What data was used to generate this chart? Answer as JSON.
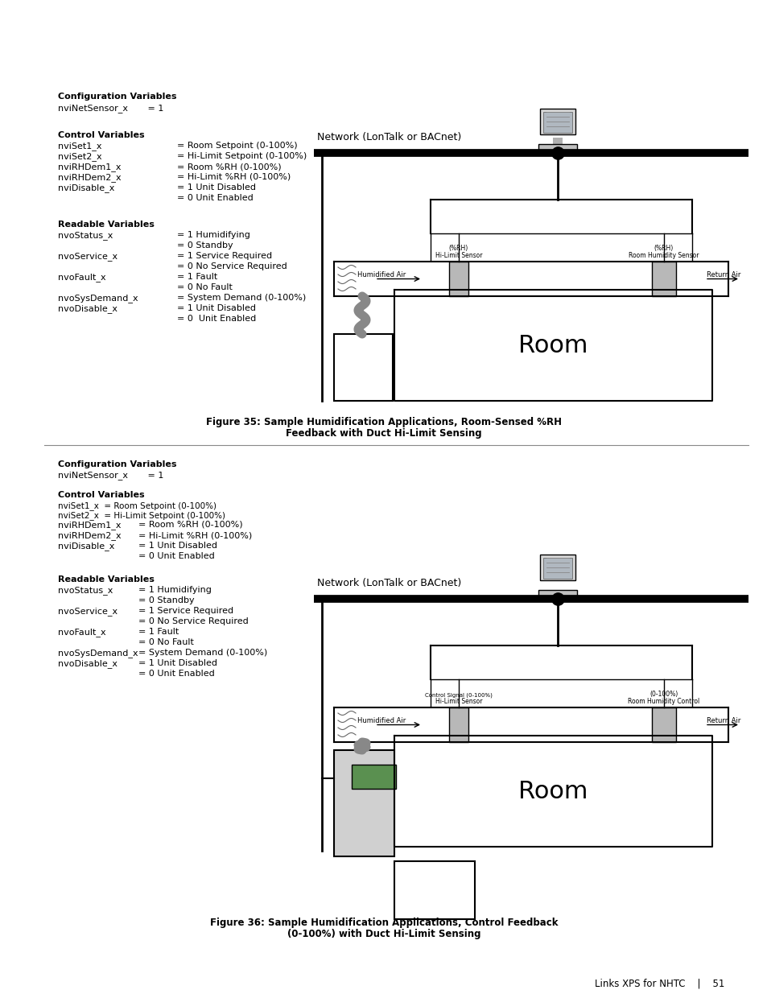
{
  "page_bg": "#ffffff",
  "section1": {
    "config_vars_title": "Configuration Variables",
    "config_vars": "nviNetSensor_x       = 1",
    "control_vars_title": "Control Variables",
    "control_vars": [
      [
        "nviSet1_x",
        "= Room Setpoint (0-100%)"
      ],
      [
        "nviSet2_x",
        "= Hi-Limit Setpoint (0-100%)"
      ],
      [
        "nviRHDem1_x",
        "= Room %RH (0-100%)"
      ],
      [
        "nviRHDem2_x",
        "= Hi-Limit %RH (0-100%)"
      ],
      [
        "nviDisable_x",
        "= 1 Unit Disabled"
      ],
      [
        "",
        "= 0 Unit Enabled"
      ]
    ],
    "readable_vars_title": "Readable Variables",
    "readable_vars": [
      [
        "nvoStatus_x",
        "= 1 Humidifying"
      ],
      [
        "",
        "= 0 Standby"
      ],
      [
        "nvoService_x",
        "= 1 Service Required"
      ],
      [
        "",
        "= 0 No Service Required"
      ],
      [
        "nvoFault_x",
        "= 1 Fault"
      ],
      [
        "",
        "= 0 No Fault"
      ],
      [
        "nvoSysDemand_x",
        "= System Demand (0-100%)"
      ],
      [
        "nvoDisable_x",
        "= 1 Unit Disabled"
      ],
      [
        "",
        "= 0  Unit Enabled"
      ]
    ],
    "fig_caption_line1": "Figure 35: Sample Humidification Applications, Room-Sensed %RH",
    "fig_caption_line2": "Feedback with Duct Hi-Limit Sensing",
    "network_label": "Network (LonTalk or BACnet)",
    "duct_label1": "Hi-Limit Sensor",
    "duct_label1b": "(%RH)",
    "duct_label2": "Room Humidity Sensor",
    "duct_label2b": "(%RH)",
    "humidified_air": "Humidified Air",
    "return_air": "Return Air",
    "room_label": "Room"
  },
  "section2": {
    "config_vars_title": "Configuration Variables",
    "config_vars": "nviNetSensor_x       = 1",
    "control_vars_title": "Control Variables",
    "control_vars_inline": [
      "nviSet1_x  = Room Setpoint (0-100%)",
      "nviSet2_x  = Hi-Limit Setpoint (0-100%)"
    ],
    "control_vars_table": [
      [
        "nviRHDem1_x",
        "= Room %RH (0-100%)"
      ],
      [
        "nviRHDem2_x",
        "= Hi-Limit %RH (0-100%)"
      ],
      [
        "nviDisable_x",
        "= 1 Unit Disabled"
      ],
      [
        "",
        "= 0 Unit Enabled"
      ]
    ],
    "readable_vars_title": "Readable Variables",
    "readable_vars": [
      [
        "nvoStatus_x",
        "= 1 Humidifying"
      ],
      [
        "",
        "= 0 Standby"
      ],
      [
        "nvoService_x",
        "= 1 Service Required"
      ],
      [
        "",
        "= 0 No Service Required"
      ],
      [
        "nvoFault_x",
        "= 1 Fault"
      ],
      [
        "",
        "= 0 No Fault"
      ],
      [
        "nvoSysDemand_x",
        "= System Demand (0-100%)"
      ],
      [
        "nvoDisable_x",
        "= 1 Unit Disabled"
      ],
      [
        "",
        "= 0 Unit Enabled"
      ]
    ],
    "fig_caption_line1": "Figure 36: Sample Humidification Applications, Control Feedback",
    "fig_caption_line2": "(0-100%) with Duct Hi-Limit Sensing",
    "network_label": "Network (LonTalk or BACnet)",
    "duct_label1": "Hi-Limit Sensor",
    "duct_label1b": "Control Signal (0-100%)",
    "duct_label2": "Room Humidity Control",
    "duct_label2b": "(0-100%)",
    "humidified_air": "Humidified Air",
    "return_air": "Return Air",
    "room_label": "Room"
  },
  "footer": "Links XPS for NHTC    |    51"
}
